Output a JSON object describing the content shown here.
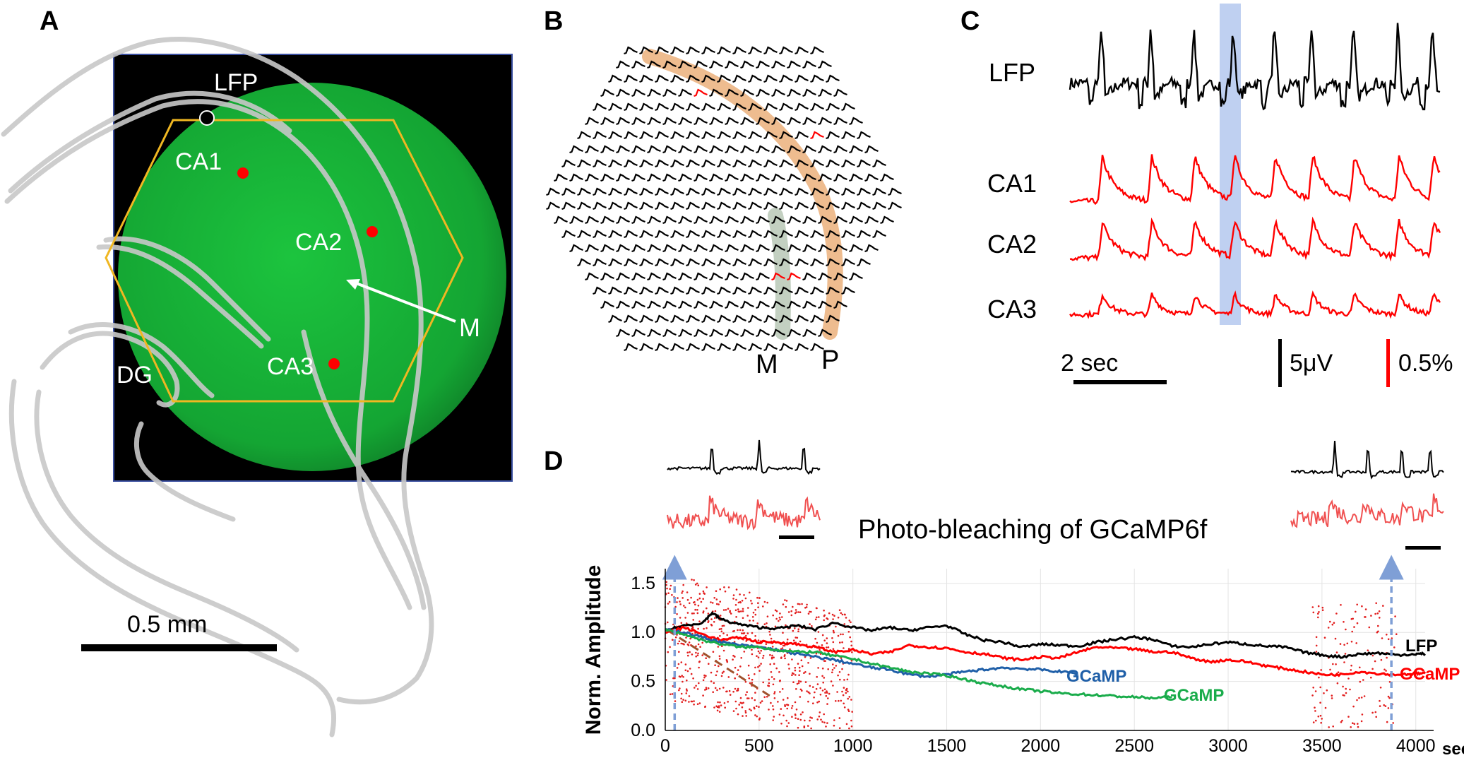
{
  "panels": {
    "A": "A",
    "B": "B",
    "C": "C",
    "D": "D"
  },
  "panel_a": {
    "labels": {
      "lfp": "LFP",
      "ca1": "CA1",
      "ca2": "CA2",
      "ca3": "CA3",
      "dg": "DG",
      "m": "M"
    },
    "scalebar": "0.5 mm",
    "colors": {
      "fluorescence": "#18b43a",
      "hexagon": "#f0b722",
      "site": "#ff0000"
    }
  },
  "panel_b": {
    "labels": {
      "m": "M",
      "p": "P"
    }
  },
  "panel_c": {
    "traces": [
      "LFP",
      "CA1",
      "CA2",
      "CA3"
    ],
    "time_scale": "2 sec",
    "voltage_scale": "5μV",
    "optical_scale": "0.5%",
    "colors": {
      "lfp": "#000000",
      "gcamp": "#ff0000",
      "highlight": "#b4c8ee"
    }
  },
  "panel_d": {
    "title": "Photo-bleaching of GCaMP6f",
    "series_labels": [
      "LFP",
      "GCaMP",
      "GCaMP",
      "GCaMP"
    ]
  },
  "chart_data": {
    "type": "line",
    "title": "Photo-bleaching of GCaMP6f",
    "xlabel": "sec",
    "ylabel": "Norm. Amplitude",
    "xlim": [
      0,
      4050
    ],
    "ylim": [
      0,
      1.65
    ],
    "xticks": [
      "0",
      "500",
      "1000",
      "1500",
      "2000",
      "2500",
      "3000",
      "3500",
      "4000"
    ],
    "yticks": [
      "0.0",
      "0.5",
      "1.0",
      "1.5"
    ],
    "grid": true,
    "series": [
      {
        "name": "LFP",
        "color": "#000000",
        "x": [
          0,
          100,
          200,
          250,
          300,
          400,
          500,
          600,
          700,
          800,
          900,
          1000,
          1100,
          1200,
          1300,
          1400,
          1500,
          1600,
          1700,
          1800,
          1900,
          2000,
          2100,
          2200,
          2300,
          2400,
          2500,
          2600,
          2700,
          2800,
          2900,
          3000,
          3100,
          3200,
          3300,
          3400,
          3500,
          3600,
          3700,
          3800,
          3900,
          4000,
          4050
        ],
        "y": [
          1.02,
          1.07,
          1.1,
          1.2,
          1.13,
          1.08,
          1.05,
          1.04,
          1.07,
          1.03,
          1.1,
          1.05,
          1.02,
          1.05,
          1.02,
          1.05,
          1.07,
          0.98,
          0.92,
          0.9,
          0.85,
          0.88,
          0.87,
          0.86,
          0.9,
          0.93,
          0.95,
          0.93,
          0.86,
          0.85,
          0.88,
          0.9,
          0.88,
          0.86,
          0.85,
          0.8,
          0.77,
          0.75,
          0.78,
          0.79,
          0.77,
          0.78,
          0.78
        ]
      },
      {
        "name": "GCaMP",
        "color": "#ff0000",
        "x": [
          0,
          100,
          200,
          300,
          400,
          500,
          600,
          700,
          800,
          900,
          1000,
          1100,
          1200,
          1300,
          1400,
          1500,
          1600,
          1700,
          1800,
          1900,
          2000,
          2100,
          2200,
          2300,
          2400,
          2500,
          2600,
          2700,
          2800,
          2900,
          3000,
          3100,
          3200,
          3300,
          3400,
          3500,
          3600,
          3700,
          3800,
          3900,
          4000,
          4050
        ],
        "y": [
          1.0,
          1.05,
          0.98,
          0.92,
          0.95,
          0.9,
          0.9,
          0.88,
          0.85,
          0.8,
          0.82,
          0.78,
          0.8,
          0.87,
          0.85,
          0.84,
          0.8,
          0.78,
          0.74,
          0.72,
          0.75,
          0.74,
          0.8,
          0.85,
          0.84,
          0.83,
          0.8,
          0.8,
          0.74,
          0.7,
          0.72,
          0.7,
          0.66,
          0.63,
          0.6,
          0.57,
          0.57,
          0.6,
          0.58,
          0.57,
          0.58,
          0.58
        ]
      },
      {
        "name": "GCaMP",
        "color": "#1f5fa8",
        "x": [
          0,
          100,
          200,
          300,
          400,
          500,
          600,
          700,
          800,
          900,
          1000,
          1100,
          1200,
          1300,
          1400,
          1500,
          1600,
          1700,
          1800,
          1900,
          2000,
          2100,
          2200
        ],
        "y": [
          1.03,
          1.0,
          0.95,
          0.9,
          0.87,
          0.85,
          0.82,
          0.78,
          0.75,
          0.72,
          0.68,
          0.64,
          0.62,
          0.57,
          0.55,
          0.57,
          0.6,
          0.62,
          0.64,
          0.63,
          0.62,
          0.6,
          0.58
        ]
      },
      {
        "name": "GCaMP",
        "color": "#1aac4b",
        "x": [
          0,
          100,
          200,
          300,
          400,
          500,
          600,
          700,
          800,
          900,
          1000,
          1100,
          1200,
          1300,
          1400,
          1500,
          1600,
          1700,
          1800,
          1900,
          2000,
          2100,
          2200,
          2300,
          2400,
          2500,
          2600,
          2700
        ],
        "y": [
          1.03,
          0.98,
          0.92,
          0.88,
          0.85,
          0.85,
          0.82,
          0.8,
          0.8,
          0.76,
          0.73,
          0.68,
          0.64,
          0.6,
          0.58,
          0.56,
          0.52,
          0.48,
          0.45,
          0.42,
          0.4,
          0.38,
          0.37,
          0.36,
          0.35,
          0.34,
          0.33,
          0.34
        ]
      }
    ],
    "markers": [
      {
        "x": 50,
        "style": "dashed arrow"
      },
      {
        "x": 3870,
        "style": "dashed arrow"
      }
    ]
  }
}
